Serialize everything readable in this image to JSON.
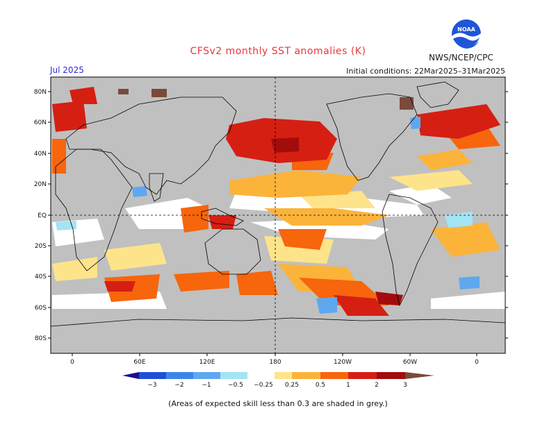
{
  "header": {
    "title": "CFSv2 monthly SST anomalies (K)",
    "agency": "NWS/NCEP/CPC",
    "valid_month": "Jul 2025",
    "initial_conditions": "Initial conditions: 22Mar2025–31Mar2025",
    "logo_text": "NOAA"
  },
  "map": {
    "lat_labels": [
      "80N",
      "60N",
      "40N",
      "20N",
      "EQ",
      "20S",
      "40S",
      "60S",
      "80S"
    ],
    "lon_labels": [
      "0",
      "60E",
      "120E",
      "180",
      "120W",
      "60W",
      "0"
    ],
    "grey_color": "#c0c0c0",
    "coastline_color": "#000000"
  },
  "colorbar": {
    "ticks": [
      "−3",
      "−2",
      "−1",
      "−0.5",
      "−0.25",
      "0.25",
      "0.5",
      "1",
      "2",
      "3"
    ],
    "colors": [
      "#1b0f8f",
      "#1f4fd8",
      "#3b86ea",
      "#5ea8f0",
      "#a3e4f5",
      "#ffffff",
      "#fde48a",
      "#fbb33a",
      "#f7650c",
      "#d51f12",
      "#a30c0c",
      "#7a4a3c"
    ]
  },
  "footnote": "(Areas of expected skill less than 0.3 are shaded in grey.)"
}
